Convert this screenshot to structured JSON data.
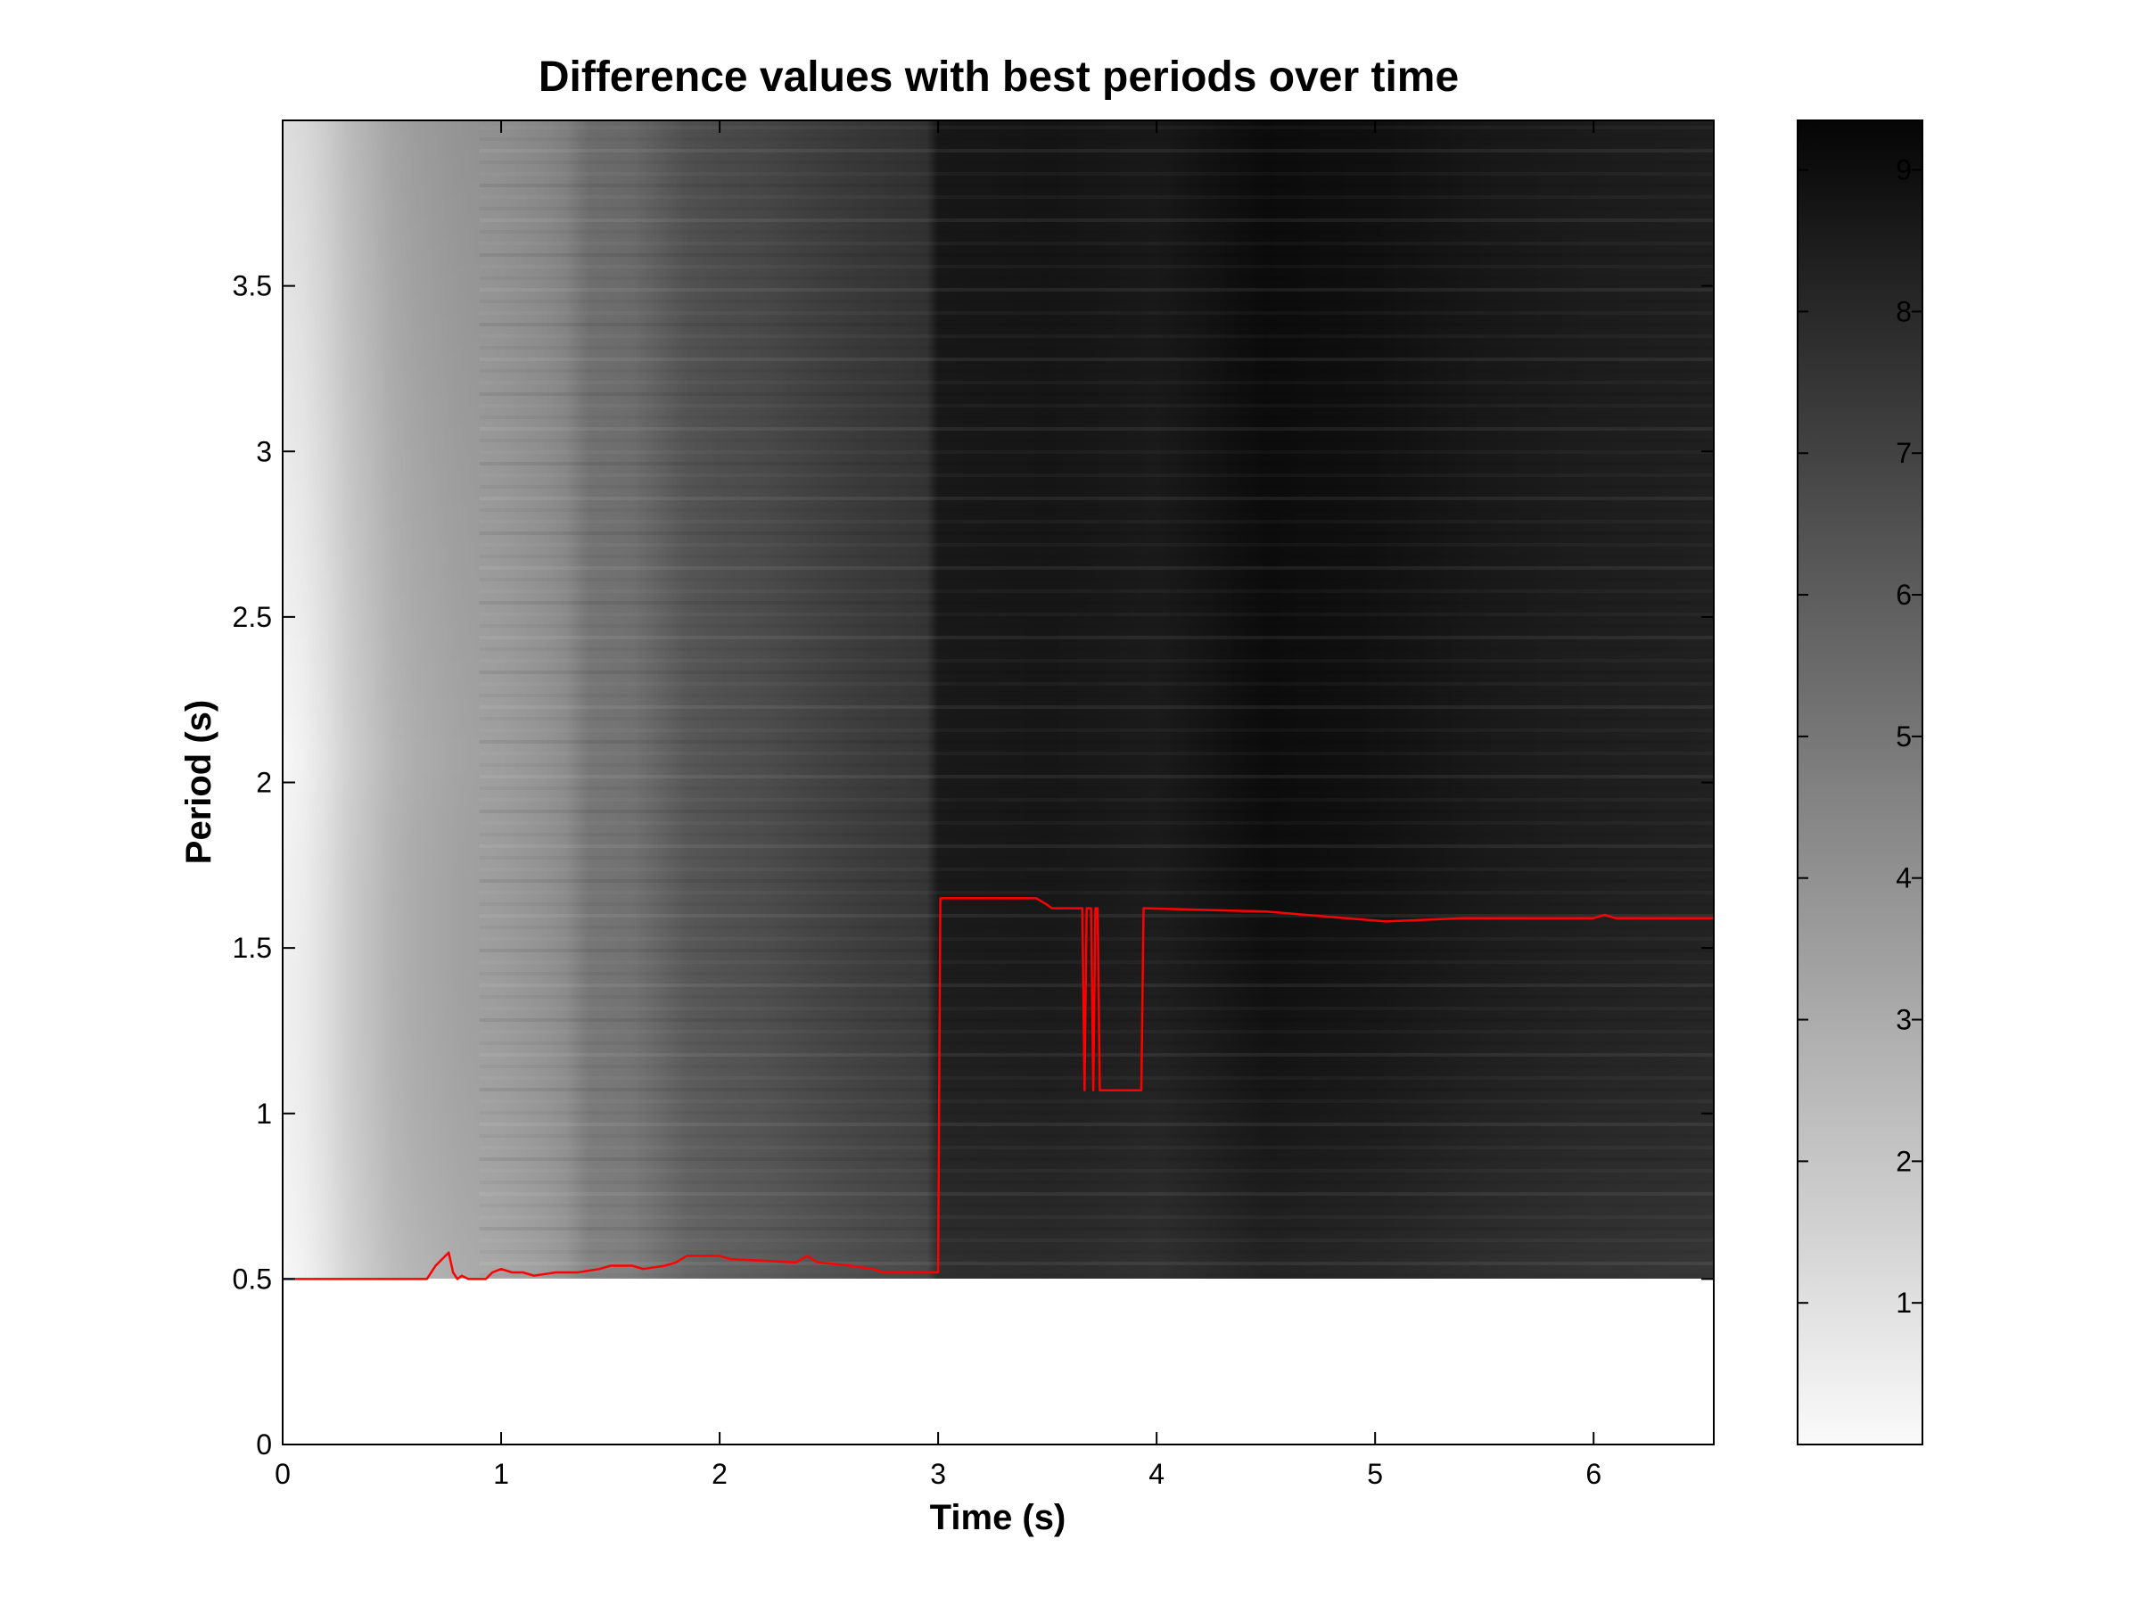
{
  "chart_data": {
    "type": "heatmap",
    "title": "Difference values with best periods over time",
    "xlabel": "Time (s)",
    "ylabel": "Period (s)",
    "xlim": [
      0,
      6.55
    ],
    "ylim": [
      0,
      4.0
    ],
    "xticks": [
      0,
      1,
      2,
      3,
      4,
      5,
      6
    ],
    "xtick_labels": [
      "0",
      "1",
      "2",
      "3",
      "4",
      "5",
      "6"
    ],
    "yticks": [
      0,
      0.5,
      1,
      1.5,
      2,
      2.5,
      3,
      3.5
    ],
    "ytick_labels": [
      "0",
      "0.5",
      "1",
      "1.5",
      "2",
      "2.5",
      "3",
      "3.5"
    ],
    "colormap": "gray (reversed: white = low, black = high)",
    "colorbar": {
      "range": [
        0,
        9.35
      ],
      "ticks": [
        1,
        2,
        3,
        4,
        5,
        6,
        7,
        8,
        9
      ],
      "tick_labels": [
        "1",
        "2",
        "3",
        "4",
        "5",
        "6",
        "7",
        "8",
        "9"
      ]
    },
    "heatmap_period_range": [
      0.5,
      4.0
    ],
    "heatmap_columns": [
      {
        "t": 0.0,
        "v": 0.1
      },
      {
        "t": 0.1,
        "v": 0.4
      },
      {
        "t": 0.2,
        "v": 0.9
      },
      {
        "t": 0.3,
        "v": 1.6
      },
      {
        "t": 0.4,
        "v": 2.1
      },
      {
        "t": 0.5,
        "v": 2.6
      },
      {
        "t": 0.6,
        "v": 2.9
      },
      {
        "t": 0.7,
        "v": 3.1
      },
      {
        "t": 0.8,
        "v": 3.3
      },
      {
        "t": 0.9,
        "v": 3.4
      },
      {
        "t": 1.0,
        "v": 3.5
      },
      {
        "t": 1.1,
        "v": 3.7
      },
      {
        "t": 1.2,
        "v": 3.9
      },
      {
        "t": 1.3,
        "v": 4.2
      },
      {
        "t": 1.4,
        "v": 5.0
      },
      {
        "t": 1.6,
        "v": 5.2
      },
      {
        "t": 1.85,
        "v": 6.2
      },
      {
        "t": 2.0,
        "v": 6.4
      },
      {
        "t": 2.2,
        "v": 6.6
      },
      {
        "t": 2.4,
        "v": 6.9
      },
      {
        "t": 2.7,
        "v": 7.3
      },
      {
        "t": 2.95,
        "v": 7.5
      },
      {
        "t": 3.0,
        "v": 8.6
      },
      {
        "t": 3.5,
        "v": 8.7
      },
      {
        "t": 4.0,
        "v": 8.5
      },
      {
        "t": 4.5,
        "v": 9.1
      },
      {
        "t": 5.0,
        "v": 8.9
      },
      {
        "t": 5.5,
        "v": 8.6
      },
      {
        "t": 6.0,
        "v": 8.4
      },
      {
        "t": 6.55,
        "v": 8.3
      }
    ],
    "series": [
      {
        "type": "line",
        "color": "#ff0000",
        "x": [
          0,
          0.66,
          0.7,
          0.76,
          0.78,
          0.8,
          0.82,
          0.85,
          0.9,
          0.93,
          0.96,
          1.0,
          1.05,
          1.1,
          1.15,
          1.25,
          1.35,
          1.45,
          1.5,
          1.6,
          1.65,
          1.75,
          1.8,
          1.85,
          2.0,
          2.05,
          2.35,
          2.4,
          2.45,
          2.6,
          2.7,
          2.75,
          2.95,
          3.0,
          3.01,
          3.45,
          3.5,
          3.52,
          3.66,
          3.67,
          3.68,
          3.7,
          3.71,
          3.72,
          3.73,
          3.74,
          3.76,
          3.76,
          3.93,
          3.94,
          3.95,
          4.5,
          5.05,
          5.4,
          6.0,
          6.05,
          6.1,
          6.55
        ],
        "y": [
          0.5,
          0.5,
          0.54,
          0.58,
          0.52,
          0.5,
          0.51,
          0.5,
          0.5,
          0.5,
          0.52,
          0.53,
          0.52,
          0.52,
          0.51,
          0.52,
          0.52,
          0.53,
          0.54,
          0.54,
          0.53,
          0.54,
          0.55,
          0.57,
          0.57,
          0.56,
          0.55,
          0.57,
          0.55,
          0.54,
          0.53,
          0.52,
          0.52,
          0.52,
          1.65,
          1.65,
          1.63,
          1.62,
          1.62,
          1.07,
          1.62,
          1.62,
          1.07,
          1.62,
          1.62,
          1.07,
          1.07,
          1.07,
          1.07,
          1.62,
          1.62,
          1.61,
          1.58,
          1.59,
          1.59,
          1.6,
          1.59,
          1.59
        ]
      }
    ],
    "grid": false,
    "legend": "none"
  }
}
